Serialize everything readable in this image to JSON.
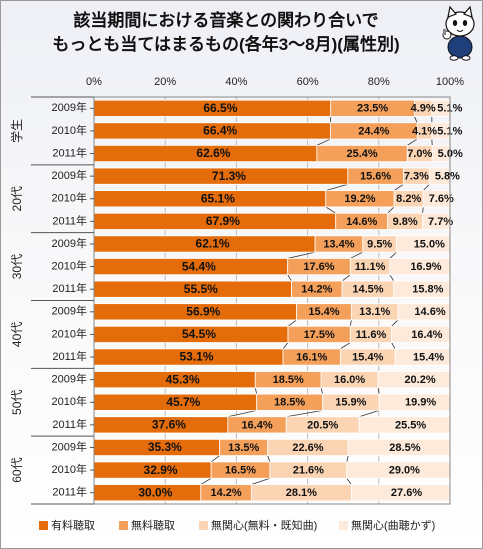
{
  "title_lines": [
    "該当期間における音楽との関わり合いで",
    "もっとも当てはまるもの(各年3～8月)(属性別)"
  ],
  "colors": {
    "paid": "#e46c0a",
    "free": "#f5a05a",
    "uninterested_free": "#fbd4b4",
    "uninterested": "#fdeada",
    "grid": "#bcbcbc",
    "bar_border": "#ffffff"
  },
  "legend": [
    {
      "label": "有料聴取",
      "color": "#e46c0a"
    },
    {
      "label": "無料聴取",
      "color": "#f5a05a"
    },
    {
      "label": "無関心(無料・既知曲)",
      "color": "#fbd4b4"
    },
    {
      "label": "無関心(曲聴かず)",
      "color": "#fdeada"
    }
  ],
  "mascot": "cat-character-icon",
  "chart_data": {
    "type": "bar",
    "orientation": "horizontal",
    "stacked": true,
    "xlim": [
      0,
      100
    ],
    "x_ticks": [
      "0%",
      "20%",
      "40%",
      "60%",
      "80%",
      "100%"
    ],
    "grid": true,
    "legend_position": "bottom",
    "groups": [
      {
        "name": "学生",
        "rows": [
          {
            "year": "2009年",
            "values": [
              66.5,
              23.5,
              4.9,
              5.1
            ]
          },
          {
            "year": "2010年",
            "values": [
              66.4,
              24.4,
              4.1,
              5.1
            ]
          },
          {
            "year": "2011年",
            "values": [
              62.6,
              25.4,
              7.0,
              5.0
            ]
          }
        ]
      },
      {
        "name": "20代",
        "rows": [
          {
            "year": "2009年",
            "values": [
              71.3,
              15.6,
              7.3,
              5.8
            ]
          },
          {
            "year": "2010年",
            "values": [
              65.1,
              19.2,
              8.2,
              7.6
            ]
          },
          {
            "year": "2011年",
            "values": [
              67.9,
              14.6,
              9.8,
              7.7
            ]
          }
        ]
      },
      {
        "name": "30代",
        "rows": [
          {
            "year": "2009年",
            "values": [
              62.1,
              13.4,
              9.5,
              15.0
            ]
          },
          {
            "year": "2010年",
            "values": [
              54.4,
              17.6,
              11.1,
              16.9
            ]
          },
          {
            "year": "2011年",
            "values": [
              55.5,
              14.2,
              14.5,
              15.8
            ]
          }
        ]
      },
      {
        "name": "40代",
        "rows": [
          {
            "year": "2009年",
            "values": [
              56.9,
              15.4,
              13.1,
              14.6
            ]
          },
          {
            "year": "2010年",
            "values": [
              54.5,
              17.5,
              11.6,
              16.4
            ]
          },
          {
            "year": "2011年",
            "values": [
              53.1,
              16.1,
              15.4,
              15.4
            ]
          }
        ]
      },
      {
        "name": "50代",
        "rows": [
          {
            "year": "2009年",
            "values": [
              45.3,
              18.5,
              16.0,
              20.2
            ]
          },
          {
            "year": "2010年",
            "values": [
              45.7,
              18.5,
              15.9,
              19.9
            ]
          },
          {
            "year": "2011年",
            "values": [
              37.6,
              16.4,
              20.5,
              25.5
            ]
          }
        ]
      },
      {
        "name": "60代",
        "rows": [
          {
            "year": "2009年",
            "values": [
              35.3,
              13.5,
              22.6,
              28.5
            ]
          },
          {
            "year": "2010年",
            "values": [
              32.9,
              16.5,
              21.6,
              29.0
            ]
          },
          {
            "year": "2011年",
            "values": [
              30.0,
              14.2,
              28.1,
              27.6
            ]
          }
        ]
      }
    ],
    "series": [
      "有料聴取",
      "無料聴取",
      "無関心(無料・既知曲)",
      "無関心(曲聴かず)"
    ]
  }
}
